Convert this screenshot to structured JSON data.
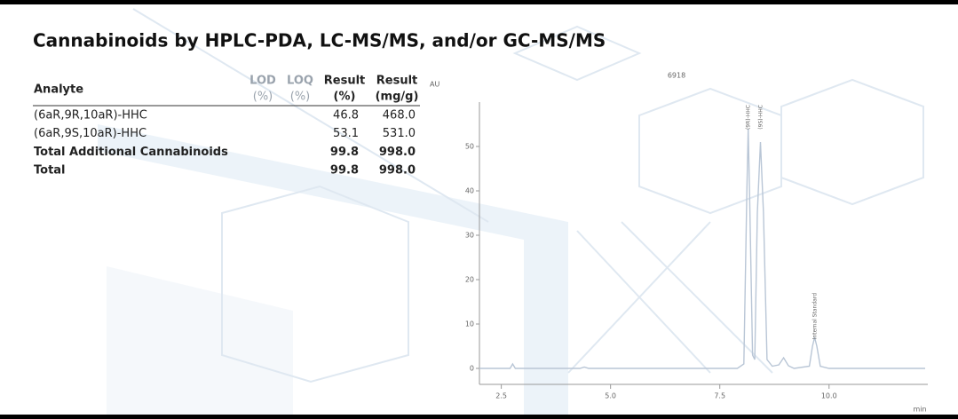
{
  "header": {
    "title": "Cannabinoids by HPLC-PDA, LC-MS/MS, and/or GC-MS/MS"
  },
  "table": {
    "analyte_header": "Analyte",
    "columns": [
      {
        "top": "LOD",
        "bottom": "(%)",
        "muted": true
      },
      {
        "top": "LOQ",
        "bottom": "(%)",
        "muted": true
      },
      {
        "top": "Result",
        "bottom": "(%)",
        "muted": false
      },
      {
        "top": "Result",
        "bottom": "(mg/g)",
        "muted": false
      }
    ],
    "rows": [
      {
        "analyte": "(6aR,9R,10aR)-HHC",
        "result_pct": "46.8",
        "result_mgg": "468.0",
        "bold": false
      },
      {
        "analyte": "(6aR,9S,10aR)-HHC",
        "result_pct": "53.1",
        "result_mgg": "531.0",
        "bold": false
      },
      {
        "analyte": "Total Additional Cannabinoids",
        "result_pct": "99.8",
        "result_mgg": "998.0",
        "bold": true
      },
      {
        "analyte": "Total",
        "result_pct": "99.8",
        "result_mgg": "998.0",
        "bold": true
      }
    ]
  },
  "chromatogram": {
    "sample_id": "6918",
    "y_unit": "AU",
    "x_unit": "min",
    "color": "#b9c6d6",
    "xlim": [
      2.0,
      12.26
    ],
    "ylim": [
      -3.6,
      60
    ],
    "xticks": [
      2.5,
      {
        "value": 5,
        "label": "5.0"
      },
      7.5,
      {
        "value": 10,
        "label": "10.0"
      }
    ],
    "yticks": [
      0,
      10,
      20,
      30,
      40,
      50
    ],
    "x": [
      2.0,
      2.7,
      2.76,
      2.82,
      4.3,
      4.4,
      4.5,
      7.9,
      8.05,
      8.12,
      8.15,
      8.18,
      8.25,
      8.3,
      8.36,
      8.43,
      8.5,
      8.58,
      8.7,
      8.85,
      8.96,
      9.07,
      9.2,
      9.55,
      9.62,
      9.67,
      9.72,
      9.8,
      10.0,
      12.2
    ],
    "values": [
      0,
      0,
      1,
      0,
      0,
      0.3,
      0,
      0,
      1,
      40,
      54,
      40,
      3,
      2,
      35,
      51,
      35,
      2,
      0.5,
      0.8,
      2.4,
      0.6,
      0,
      0.5,
      5,
      7,
      5,
      0.5,
      0,
      0
    ],
    "peak_labels": [
      "(9R)-HHC",
      "(9S)-HHC",
      "Internal Standard"
    ]
  }
}
